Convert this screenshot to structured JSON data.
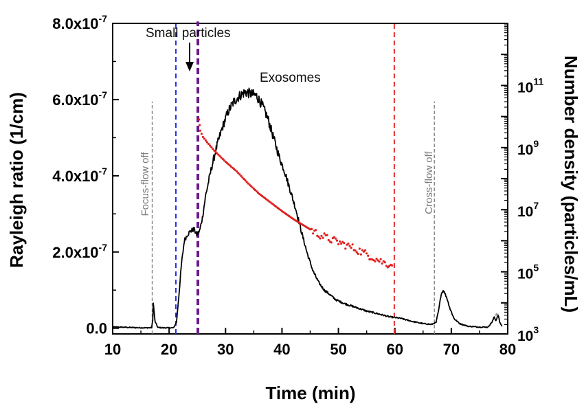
{
  "chart_data": {
    "type": "line",
    "x_axis": {
      "label": "Time (min)",
      "range": [
        10,
        80
      ],
      "ticks": [
        "10",
        "20",
        "30",
        "40",
        "50",
        "60",
        "70",
        "80"
      ]
    },
    "y_axis_left": {
      "label": "Rayleigh ratio (1/cm)",
      "range": [
        -1.5e-08,
        8e-07
      ],
      "ticks": [
        {
          "value": 0,
          "base": "0.0",
          "exp": ""
        },
        {
          "value": 2e-07,
          "base": "2.0x10",
          "exp": "-7"
        },
        {
          "value": 4e-07,
          "base": "4.0x10",
          "exp": "-7"
        },
        {
          "value": 6e-07,
          "base": "6.0x10",
          "exp": "-7"
        },
        {
          "value": 8e-07,
          "base": "8.0x10",
          "exp": "-7"
        }
      ]
    },
    "y_axis_right": {
      "label": "Number density (particles/mL)",
      "scale": "log",
      "range": [
        1000,
        10000000000000.0
      ],
      "ticks": [
        {
          "value": 1000,
          "base": "10",
          "exp": "3"
        },
        {
          "value": 100000,
          "base": "10",
          "exp": "5"
        },
        {
          "value": 10000000,
          "base": "10",
          "exp": "7"
        },
        {
          "value": 1000000000,
          "base": "10",
          "exp": "9"
        },
        {
          "value": 100000000000,
          "base": "10",
          "exp": "11"
        }
      ]
    },
    "series": [
      {
        "axis": "left",
        "color": "#000000",
        "style": "line",
        "x": [
          10,
          12,
          14,
          16,
          16.9,
          17.1,
          17.2,
          17.5,
          18,
          19,
          20,
          20.8,
          21.3,
          21.7,
          22.2,
          22.7,
          23.2,
          23.8,
          24.4,
          24.9,
          25.4,
          25.9,
          26.5,
          27.5,
          28.5,
          29.5,
          30.5,
          31.5,
          32.5,
          33.5,
          34.5,
          35.5,
          36.5,
          37.5,
          38.5,
          39.5,
          40.5,
          41.5,
          42.5,
          43.5,
          44.5,
          45.5,
          46.5,
          47.5,
          48.5,
          49.5,
          51,
          53,
          55,
          57,
          59,
          61,
          63,
          65,
          66.5,
          67.3,
          67.8,
          68.2,
          68.6,
          69.2,
          69.8,
          70.5,
          71.5,
          73,
          75,
          76.5,
          77.3,
          77.6,
          77.9,
          78.3,
          78.6,
          79
        ],
        "y": [
          3e-09,
          2.5e-09,
          1.5e-09,
          1e-09,
          1.5e-09,
          2e-08,
          6.5e-08,
          1.8e-08,
          2e-09,
          1e-09,
          1e-09,
          1e-09,
          1.5e-08,
          8e-08,
          1.7e-07,
          2.3e-07,
          2.45e-07,
          2.55e-07,
          2.6e-07,
          2.45e-07,
          2.55e-07,
          2.9e-07,
          3.5e-07,
          4.2e-07,
          4.8e-07,
          5.3e-07,
          5.7e-07,
          5.95e-07,
          6.1e-07,
          6.2e-07,
          6.15e-07,
          6.1e-07,
          5.85e-07,
          5.5e-07,
          5e-07,
          4.5e-07,
          4.1e-07,
          3.6e-07,
          3.1e-07,
          2.5e-07,
          1.95e-07,
          1.5e-07,
          1.2e-07,
          1e-07,
          8.8e-08,
          7.5e-08,
          6.5e-08,
          5.5e-08,
          4.5e-08,
          3.8e-08,
          3e-08,
          2.6e-08,
          1.8e-08,
          1.2e-08,
          1e-08,
          1.5e-08,
          5e-08,
          9e-08,
          1e-07,
          8e-08,
          5e-08,
          2.5e-08,
          1.2e-08,
          5e-09,
          3e-09,
          3e-09,
          1.8e-08,
          3e-08,
          2e-08,
          3.5e-08,
          1.5e-08,
          5e-09
        ]
      },
      {
        "axis": "right",
        "color": "#e02020",
        "style": "dots",
        "x": [
          25.3,
          25.5,
          26,
          27,
          28,
          30,
          32,
          34,
          36,
          38,
          40,
          42,
          44,
          46,
          48,
          50,
          52,
          54,
          56,
          58,
          59.5
        ],
        "y": [
          8000000000.0,
          3500000000.0,
          2200000000.0,
          1300000000.0,
          800000000.0,
          350000000.0,
          170000000.0,
          70000000.0,
          32000000.0,
          17000000.0,
          9000000.0,
          5000000.0,
          3000000.0,
          1800000.0,
          1200000.0,
          900000.0,
          650000.0,
          450000.0,
          300000.0,
          200000.0,
          160000.0
        ]
      }
    ],
    "vertical_lines": [
      {
        "x": 17.0,
        "color": "#7a7a7a",
        "width": 1.3,
        "dash": "5,3",
        "top_value": 5.95e-07
      },
      {
        "x": 21.2,
        "color": "#2230e8",
        "width": 2,
        "dash": "7,5",
        "top_value": 8.05e-07
      },
      {
        "x": 25.1,
        "color": "#6a1b8a",
        "width": 4,
        "dash": "9,5",
        "top_value": 8.05e-07
      },
      {
        "x": 59.9,
        "color": "#e03030",
        "width": 2,
        "dash": "7,5",
        "top_value": 8.05e-07
      },
      {
        "x": 67.0,
        "color": "#7a7a7a",
        "width": 1.3,
        "dash": "5,3",
        "top_value": 5.95e-07
      }
    ],
    "annotations": {
      "small_particles": "Small particles",
      "exosomes": "Exosomes",
      "focus_flow_off": "Focus-flow off",
      "cross_flow_off": "Cross-flow off",
      "asterisk": "*"
    },
    "grid": false
  }
}
